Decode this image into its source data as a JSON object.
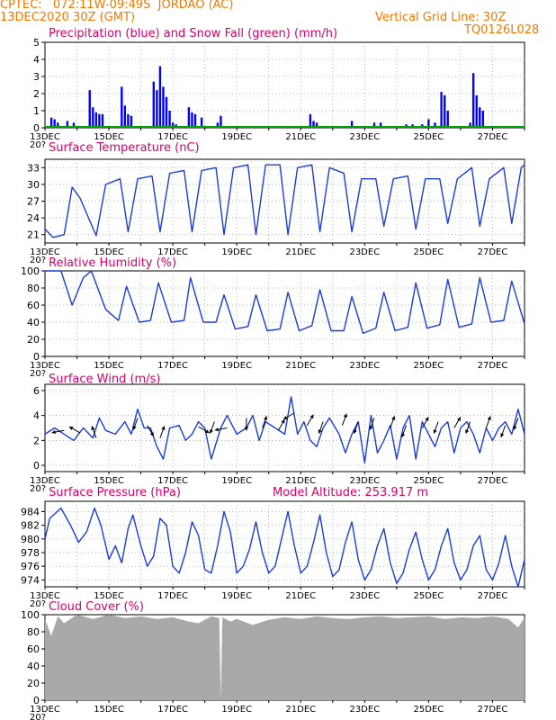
{
  "header": {
    "line1": "CPTEC:   072:11W-09:49S  JORDAO (AC)",
    "line2_left": "13DEC2020 30Z (GMT)",
    "line2_right": "Vertical Grid Line: 30Z",
    "line3_right": "TQ0126L028"
  },
  "colors": {
    "header_text": "#f07800",
    "panel_title": "#d4006a",
    "precip": "#0000ff",
    "snow": "#00a000",
    "line": "#1a3cd8",
    "wind_arrow": "#000000",
    "cloud_fill": "#a9a9a9",
    "grid": "#999999"
  },
  "x_dates": [
    "13DEC",
    "15DEC",
    "17DEC",
    "19DEC",
    "21DEC",
    "23DEC",
    "25DEC",
    "27DEC"
  ],
  "x_stub": "20?",
  "chart_data": [
    {
      "type": "bar",
      "title": "Precipitation (blue) and Snow Fall (green) (mm/h)",
      "ylim": [
        0,
        5
      ],
      "yticks": [
        0,
        1,
        2,
        3,
        4,
        5
      ],
      "series": [
        {
          "name": "Precipitation",
          "x": [
            13.2,
            13.3,
            13.4,
            13.7,
            13.9,
            14.4,
            14.5,
            14.6,
            14.7,
            14.8,
            15.4,
            15.5,
            15.6,
            15.7,
            16.4,
            16.5,
            16.6,
            16.7,
            16.8,
            16.9,
            17.0,
            17.1,
            17.2,
            17.5,
            17.6,
            17.7,
            17.9,
            18.4,
            18.5,
            19.4,
            21.3,
            21.4,
            21.5,
            22.6,
            23.3,
            23.5,
            24.3,
            24.5,
            24.8,
            25.0,
            25.2,
            25.4,
            25.5,
            25.6,
            26.3,
            26.4,
            26.5,
            26.6,
            26.7
          ],
          "values": [
            0.6,
            0.5,
            0.3,
            0.4,
            0.3,
            2.2,
            1.2,
            0.9,
            0.8,
            0.8,
            2.4,
            1.3,
            0.8,
            0.7,
            2.7,
            2.2,
            3.6,
            2.4,
            1.8,
            1.0,
            0.3,
            0.2,
            0.1,
            1.2,
            0.9,
            0.8,
            0.6,
            0.3,
            0.7,
            0.1,
            0.8,
            0.4,
            0.3,
            0.4,
            0.3,
            0.3,
            0.2,
            0.2,
            0.2,
            0.5,
            0.3,
            2.1,
            1.9,
            1.0,
            0.3,
            3.2,
            1.9,
            1.2,
            1.0
          ]
        },
        {
          "name": "Snow Fall",
          "x": [
            13.0,
            28.0
          ],
          "values": [
            0,
            0
          ]
        }
      ]
    },
    {
      "type": "line",
      "title": "Surface Temperature (nC)",
      "ylim": [
        19.5,
        34.5
      ],
      "yticks": [
        21,
        24,
        27,
        30,
        33
      ],
      "series": [
        {
          "name": "Temperature",
          "x": [
            13.0,
            13.25,
            13.6,
            13.85,
            14.1,
            14.6,
            14.9,
            15.35,
            15.6,
            15.9,
            16.35,
            16.6,
            16.9,
            17.35,
            17.6,
            17.9,
            18.35,
            18.6,
            18.9,
            19.35,
            19.6,
            19.9,
            20.35,
            20.6,
            20.9,
            21.35,
            21.6,
            21.9,
            22.35,
            22.6,
            22.9,
            23.35,
            23.6,
            23.9,
            24.35,
            24.6,
            24.9,
            25.35,
            25.6,
            25.9,
            26.35,
            26.6,
            26.9,
            27.35,
            27.6,
            27.9,
            28.0
          ],
          "values": [
            22.0,
            20.5,
            21.0,
            29.5,
            27.5,
            20.8,
            30.0,
            31.0,
            21.5,
            31.0,
            31.5,
            21.5,
            32.0,
            32.5,
            21.5,
            32.5,
            33.0,
            21.0,
            33.0,
            33.5,
            21.0,
            33.5,
            33.5,
            21.0,
            33.0,
            33.5,
            21.5,
            33.0,
            32.0,
            21.5,
            31.0,
            31.0,
            22.5,
            31.0,
            31.5,
            22.0,
            31.0,
            31.0,
            23.0,
            31.0,
            33.0,
            22.5,
            31.0,
            33.0,
            23.0,
            33.0,
            33.5
          ]
        }
      ]
    },
    {
      "type": "line",
      "title": "Relative Humidity (%)",
      "ylim": [
        0,
        100
      ],
      "yticks": [
        0,
        20,
        40,
        60,
        80,
        100
      ],
      "series": [
        {
          "name": "Relative Humidity",
          "x": [
            13.0,
            13.5,
            13.85,
            14.2,
            14.45,
            14.9,
            15.3,
            15.55,
            15.95,
            16.3,
            16.55,
            16.95,
            17.35,
            17.55,
            17.95,
            18.35,
            18.6,
            18.95,
            19.35,
            19.6,
            19.95,
            20.35,
            20.6,
            20.95,
            21.35,
            21.6,
            21.95,
            22.35,
            22.6,
            22.95,
            23.35,
            23.6,
            23.95,
            24.35,
            24.6,
            24.95,
            25.35,
            25.6,
            25.95,
            26.35,
            26.6,
            26.95,
            27.35,
            27.6,
            28.0
          ],
          "values": [
            100,
            100,
            60,
            92,
            100,
            55,
            42,
            82,
            40,
            42,
            86,
            40,
            42,
            92,
            40,
            40,
            72,
            32,
            35,
            72,
            30,
            32,
            75,
            30,
            36,
            78,
            30,
            30,
            70,
            27,
            33,
            75,
            30,
            34,
            86,
            33,
            37,
            90,
            34,
            38,
            92,
            40,
            42,
            88,
            38
          ]
        }
      ]
    },
    {
      "type": "line",
      "title": "Surface Wind (m/s)",
      "ylim": [
        -0.5,
        6.5
      ],
      "yticks": [
        0,
        2,
        4,
        6
      ],
      "series": [
        {
          "name": "Wind speed",
          "x": [
            13.0,
            13.3,
            13.6,
            13.9,
            14.2,
            14.5,
            14.7,
            14.9,
            15.2,
            15.5,
            15.7,
            15.9,
            16.1,
            16.3,
            16.5,
            16.7,
            16.9,
            17.2,
            17.4,
            17.6,
            17.8,
            18.0,
            18.2,
            18.5,
            18.7,
            19.0,
            19.3,
            19.5,
            19.7,
            19.9,
            20.2,
            20.5,
            20.7,
            20.9,
            21.1,
            21.3,
            21.5,
            21.7,
            21.9,
            22.2,
            22.4,
            22.6,
            22.8,
            23.0,
            23.2,
            23.4,
            23.6,
            23.8,
            24.0,
            24.2,
            24.4,
            24.6,
            24.8,
            25.0,
            25.2,
            25.4,
            25.6,
            25.8,
            26.0,
            26.2,
            26.4,
            26.6,
            26.8,
            27.0,
            27.2,
            27.4,
            27.6,
            27.8,
            28.0
          ],
          "values": [
            2.5,
            3.0,
            2.5,
            2.0,
            3.0,
            2.2,
            3.8,
            2.8,
            2.5,
            3.5,
            2.5,
            4.5,
            3.0,
            3.0,
            1.5,
            0.5,
            3.0,
            3.2,
            2.0,
            2.5,
            3.5,
            3.0,
            0.5,
            3.0,
            4.0,
            2.5,
            3.0,
            4.0,
            2.0,
            3.5,
            3.0,
            2.5,
            5.5,
            2.5,
            3.5,
            2.0,
            1.5,
            3.0,
            3.8,
            2.5,
            1.0,
            2.5,
            3.5,
            0.2,
            4.0,
            1.0,
            2.0,
            3.2,
            0.5,
            3.0,
            4.0,
            0.5,
            3.5,
            2.5,
            1.5,
            3.0,
            3.5,
            1.0,
            3.0,
            3.5,
            2.5,
            1.0,
            3.0,
            2.0,
            3.0,
            3.5,
            2.5,
            4.5,
            2.5
          ]
        }
      ],
      "wind_arrows": [
        {
          "x": 13.6,
          "speed": 2.8,
          "dir_deg": 260
        },
        {
          "x": 14.1,
          "speed": 2.6,
          "dir_deg": 300
        },
        {
          "x": 14.6,
          "speed": 2.2,
          "dir_deg": 340
        },
        {
          "x": 15.9,
          "speed": 3.8,
          "dir_deg": 200
        },
        {
          "x": 16.2,
          "speed": 3.2,
          "dir_deg": 150
        },
        {
          "x": 16.6,
          "speed": 2.2,
          "dir_deg": 20
        },
        {
          "x": 17.8,
          "speed": 3.1,
          "dir_deg": 120
        },
        {
          "x": 18.3,
          "speed": 3.5,
          "dir_deg": 200
        },
        {
          "x": 18.7,
          "speed": 3.0,
          "dir_deg": 260
        },
        {
          "x": 19.3,
          "speed": 3.8,
          "dir_deg": 180
        },
        {
          "x": 19.8,
          "speed": 3.0,
          "dir_deg": 20
        },
        {
          "x": 20.3,
          "speed": 2.8,
          "dir_deg": 30
        },
        {
          "x": 20.8,
          "speed": 4.2,
          "dir_deg": 240
        },
        {
          "x": 21.2,
          "speed": 3.2,
          "dir_deg": 30
        },
        {
          "x": 21.7,
          "speed": 3.5,
          "dir_deg": 200
        },
        {
          "x": 22.3,
          "speed": 3.2,
          "dir_deg": 20
        },
        {
          "x": 22.8,
          "speed": 3.5,
          "dir_deg": 200
        },
        {
          "x": 23.3,
          "speed": 3.8,
          "dir_deg": 200
        },
        {
          "x": 23.8,
          "speed": 3.0,
          "dir_deg": 20
        },
        {
          "x": 24.3,
          "speed": 3.2,
          "dir_deg": 200
        },
        {
          "x": 24.8,
          "speed": 3.0,
          "dir_deg": 30
        },
        {
          "x": 25.3,
          "speed": 3.5,
          "dir_deg": 200
        },
        {
          "x": 25.8,
          "speed": 3.0,
          "dir_deg": 30
        },
        {
          "x": 26.3,
          "speed": 3.5,
          "dir_deg": 200
        },
        {
          "x": 26.8,
          "speed": 3.0,
          "dir_deg": 20
        },
        {
          "x": 27.4,
          "speed": 3.2,
          "dir_deg": 200
        },
        {
          "x": 27.8,
          "speed": 3.8,
          "dir_deg": 200
        }
      ]
    },
    {
      "type": "line",
      "title": "Surface Pressure (hPa)",
      "subtitle": "Model Altitude: 253.917 m",
      "ylim": [
        973.0,
        985.5
      ],
      "yticks": [
        974,
        976,
        978,
        980,
        982,
        984
      ],
      "series": [
        {
          "name": "Pressure",
          "x": [
            13.0,
            13.15,
            13.5,
            13.8,
            14.05,
            14.3,
            14.55,
            14.75,
            15.0,
            15.2,
            15.4,
            15.6,
            15.75,
            16.0,
            16.2,
            16.4,
            16.6,
            16.8,
            17.0,
            17.2,
            17.4,
            17.6,
            17.8,
            18.0,
            18.2,
            18.4,
            18.6,
            18.8,
            19.0,
            19.2,
            19.4,
            19.6,
            19.8,
            20.0,
            20.2,
            20.4,
            20.6,
            20.8,
            21.0,
            21.2,
            21.4,
            21.6,
            21.8,
            22.0,
            22.2,
            22.4,
            22.6,
            22.8,
            23.0,
            23.2,
            23.4,
            23.6,
            23.8,
            24.0,
            24.2,
            24.4,
            24.6,
            24.8,
            25.0,
            25.2,
            25.4,
            25.6,
            25.8,
            26.0,
            26.2,
            26.4,
            26.6,
            26.8,
            27.0,
            27.2,
            27.4,
            27.6,
            27.8,
            28.0
          ],
          "values": [
            980.0,
            983.0,
            984.5,
            982.0,
            979.5,
            981.0,
            984.5,
            982.0,
            977.0,
            979.0,
            976.5,
            981.5,
            983.5,
            979.0,
            976.0,
            977.5,
            983.0,
            982.0,
            976.0,
            975.0,
            978.0,
            982.5,
            980.5,
            975.5,
            975.0,
            979.0,
            984.0,
            981.0,
            975.0,
            976.0,
            978.5,
            982.5,
            978.0,
            975.0,
            976.0,
            980.0,
            984.0,
            979.0,
            975.0,
            976.0,
            979.5,
            983.5,
            978.0,
            974.5,
            975.5,
            979.5,
            982.5,
            977.0,
            974.0,
            975.5,
            979.0,
            981.5,
            976.5,
            973.5,
            975.0,
            978.5,
            981.0,
            977.0,
            974.0,
            975.5,
            979.0,
            981.5,
            976.5,
            974.0,
            975.5,
            979.0,
            980.5,
            975.5,
            974.0,
            976.5,
            980.5,
            976.0,
            973.0,
            977.0
          ]
        }
      ]
    },
    {
      "type": "area",
      "title": "Cloud Cover (%)",
      "ylim": [
        0,
        100
      ],
      "yticks": [
        0,
        20,
        40,
        60,
        80,
        100
      ],
      "series": [
        {
          "name": "Cloud Cover",
          "x": [
            13.0,
            13.2,
            13.4,
            13.6,
            14.0,
            14.5,
            15.0,
            15.5,
            16.0,
            16.5,
            17.0,
            17.5,
            17.8,
            18.0,
            18.2,
            18.45,
            18.5,
            18.55,
            18.8,
            19.0,
            19.5,
            20.0,
            20.5,
            21.0,
            21.5,
            22.0,
            22.5,
            23.0,
            23.5,
            24.0,
            24.5,
            25.0,
            25.5,
            26.0,
            26.5,
            27.0,
            27.5,
            27.8,
            28.0
          ],
          "values": [
            95,
            75,
            98,
            90,
            100,
            95,
            100,
            96,
            98,
            95,
            97,
            92,
            90,
            94,
            98,
            96,
            2,
            97,
            92,
            95,
            88,
            94,
            97,
            95,
            98,
            96,
            95,
            97,
            98,
            96,
            97,
            98,
            95,
            97,
            96,
            98,
            95,
            85,
            97
          ]
        }
      ]
    }
  ]
}
